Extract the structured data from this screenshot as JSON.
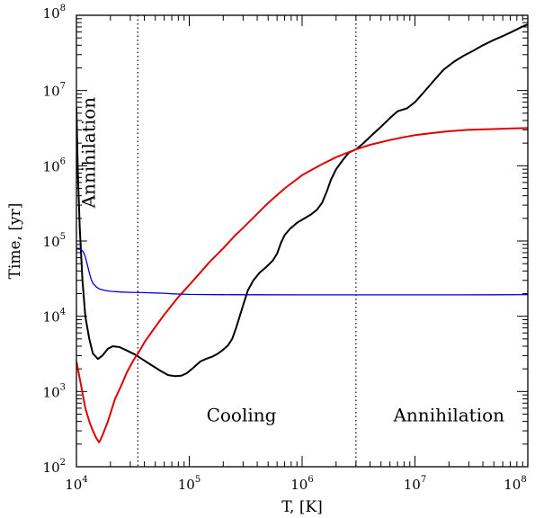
{
  "chart_data": {
    "type": "line",
    "xlabel": "T, [K]",
    "ylabel": "Time, [yr]",
    "xscale": "log",
    "yscale": "log",
    "xlim": [
      10000,
      100000000
    ],
    "ylim": [
      100,
      100000000
    ],
    "grid": false,
    "legend": "none",
    "x_ticks": [
      {
        "base": "10",
        "exp": "4",
        "value": 10000
      },
      {
        "base": "10",
        "exp": "5",
        "value": 100000
      },
      {
        "base": "10",
        "exp": "6",
        "value": 1000000
      },
      {
        "base": "10",
        "exp": "7",
        "value": 10000000
      },
      {
        "base": "10",
        "exp": "8",
        "value": 100000000
      }
    ],
    "y_ticks": [
      {
        "base": "10",
        "exp": "2",
        "value": 100
      },
      {
        "base": "10",
        "exp": "3",
        "value": 1000
      },
      {
        "base": "10",
        "exp": "4",
        "value": 10000
      },
      {
        "base": "10",
        "exp": "5",
        "value": 100000
      },
      {
        "base": "10",
        "exp": "6",
        "value": 1000000
      },
      {
        "base": "10",
        "exp": "7",
        "value": 10000000
      },
      {
        "base": "10",
        "exp": "8",
        "value": 100000000
      }
    ],
    "vlines": [
      {
        "x": 35000,
        "style": "dotted",
        "color": "#000000"
      },
      {
        "x": 3000000,
        "style": "dotted",
        "color": "#000000"
      }
    ],
    "annotations": [
      {
        "text": "Annihilation",
        "x": 14500,
        "y": 1500000,
        "rotation": -90
      },
      {
        "text": "Cooling",
        "x": 290000,
        "y": 400,
        "rotation": 0
      },
      {
        "text": "Annihilation",
        "x": 20000000,
        "y": 400,
        "rotation": 0
      }
    ],
    "series": [
      {
        "color": "#000000",
        "width": 2,
        "points": [
          [
            10000,
            6000000
          ],
          [
            10300,
            800000
          ],
          [
            10700,
            150000
          ],
          [
            11300,
            30000
          ],
          [
            12000,
            10000
          ],
          [
            13000,
            5000
          ],
          [
            14000,
            3200
          ],
          [
            15500,
            2700
          ],
          [
            17000,
            3000
          ],
          [
            19000,
            3700
          ],
          [
            21000,
            4000
          ],
          [
            24000,
            3900
          ],
          [
            28000,
            3500
          ],
          [
            33000,
            3100
          ],
          [
            38000,
            2700
          ],
          [
            45000,
            2300
          ],
          [
            55000,
            1900
          ],
          [
            65000,
            1650
          ],
          [
            75000,
            1600
          ],
          [
            85000,
            1620
          ],
          [
            95000,
            1750
          ],
          [
            110000,
            2100
          ],
          [
            125000,
            2500
          ],
          [
            140000,
            2700
          ],
          [
            160000,
            2900
          ],
          [
            180000,
            3200
          ],
          [
            200000,
            3600
          ],
          [
            220000,
            4100
          ],
          [
            240000,
            5000
          ],
          [
            260000,
            7000
          ],
          [
            280000,
            10000
          ],
          [
            300000,
            14000
          ],
          [
            330000,
            22000
          ],
          [
            370000,
            30000
          ],
          [
            420000,
            38000
          ],
          [
            480000,
            45000
          ],
          [
            550000,
            55000
          ],
          [
            600000,
            68000
          ],
          [
            650000,
            95000
          ],
          [
            700000,
            120000
          ],
          [
            780000,
            145000
          ],
          [
            900000,
            175000
          ],
          [
            1050000,
            200000
          ],
          [
            1200000,
            225000
          ],
          [
            1350000,
            260000
          ],
          [
            1500000,
            320000
          ],
          [
            1650000,
            450000
          ],
          [
            1800000,
            650000
          ],
          [
            2000000,
            900000
          ],
          [
            2300000,
            1200000
          ],
          [
            2600000,
            1500000
          ],
          [
            3000000,
            1650000
          ],
          [
            3500000,
            2000000
          ],
          [
            4200000,
            2600000
          ],
          [
            5000000,
            3300000
          ],
          [
            6000000,
            4300000
          ],
          [
            7000000,
            5300000
          ],
          [
            8500000,
            5800000
          ],
          [
            10000000,
            7000000
          ],
          [
            12000000,
            9500000
          ],
          [
            15000000,
            14000000
          ],
          [
            18000000,
            19000000
          ],
          [
            22000000,
            24000000
          ],
          [
            27000000,
            29000000
          ],
          [
            33000000,
            34000000
          ],
          [
            40000000,
            40000000
          ],
          [
            50000000,
            47000000
          ],
          [
            60000000,
            53000000
          ],
          [
            70000000,
            59000000
          ],
          [
            80000000,
            65000000
          ],
          [
            90000000,
            71000000
          ],
          [
            100000000,
            76000000
          ]
        ]
      },
      {
        "color": "#e00000",
        "width": 2,
        "points": [
          [
            10000,
            2500
          ],
          [
            11000,
            1200
          ],
          [
            12000,
            600
          ],
          [
            13000,
            400
          ],
          [
            14000,
            300
          ],
          [
            15000,
            240
          ],
          [
            15900,
            210
          ],
          [
            17000,
            260
          ],
          [
            19000,
            400
          ],
          [
            22000,
            800
          ],
          [
            25000,
            1200
          ],
          [
            28000,
            1800
          ],
          [
            32000,
            2600
          ],
          [
            36000,
            3400
          ],
          [
            40000,
            4500
          ],
          [
            45000,
            5800
          ],
          [
            50000,
            7200
          ],
          [
            60000,
            10500
          ],
          [
            70000,
            14000
          ],
          [
            80000,
            18000
          ],
          [
            100000,
            26000
          ],
          [
            125000,
            38000
          ],
          [
            150000,
            52000
          ],
          [
            200000,
            80000
          ],
          [
            250000,
            115000
          ],
          [
            300000,
            150000
          ],
          [
            400000,
            230000
          ],
          [
            500000,
            320000
          ],
          [
            700000,
            500000
          ],
          [
            1000000,
            750000
          ],
          [
            1500000,
            1050000
          ],
          [
            2000000,
            1300000
          ],
          [
            3000000,
            1650000
          ],
          [
            4000000,
            1900000
          ],
          [
            6000000,
            2200000
          ],
          [
            8000000,
            2400000
          ],
          [
            10000000,
            2550000
          ],
          [
            15000000,
            2750000
          ],
          [
            20000000,
            2880000
          ],
          [
            30000000,
            3000000
          ],
          [
            50000000,
            3080000
          ],
          [
            70000000,
            3130000
          ],
          [
            100000000,
            3170000
          ]
        ]
      },
      {
        "color": "#0000e0",
        "width": 1.3,
        "points": [
          [
            10000,
            78000
          ],
          [
            10500,
            78000
          ],
          [
            11000,
            77000
          ],
          [
            11500,
            72000
          ],
          [
            12000,
            62000
          ],
          [
            12500,
            48000
          ],
          [
            13000,
            38000
          ],
          [
            13500,
            31000
          ],
          [
            14000,
            27500
          ],
          [
            15000,
            24500
          ],
          [
            16000,
            23000
          ],
          [
            18000,
            22000
          ],
          [
            20000,
            21500
          ],
          [
            25000,
            21000
          ],
          [
            30000,
            20800
          ],
          [
            40000,
            20600
          ],
          [
            50000,
            20400
          ],
          [
            60000,
            20200
          ],
          [
            70000,
            19900
          ],
          [
            80000,
            19700
          ],
          [
            100000,
            19500
          ],
          [
            150000,
            19400
          ],
          [
            200000,
            19350
          ],
          [
            500000,
            19300
          ],
          [
            1000000,
            19250
          ],
          [
            10000000,
            19250
          ],
          [
            50000000,
            19300
          ],
          [
            100000000,
            19400
          ]
        ]
      }
    ]
  }
}
